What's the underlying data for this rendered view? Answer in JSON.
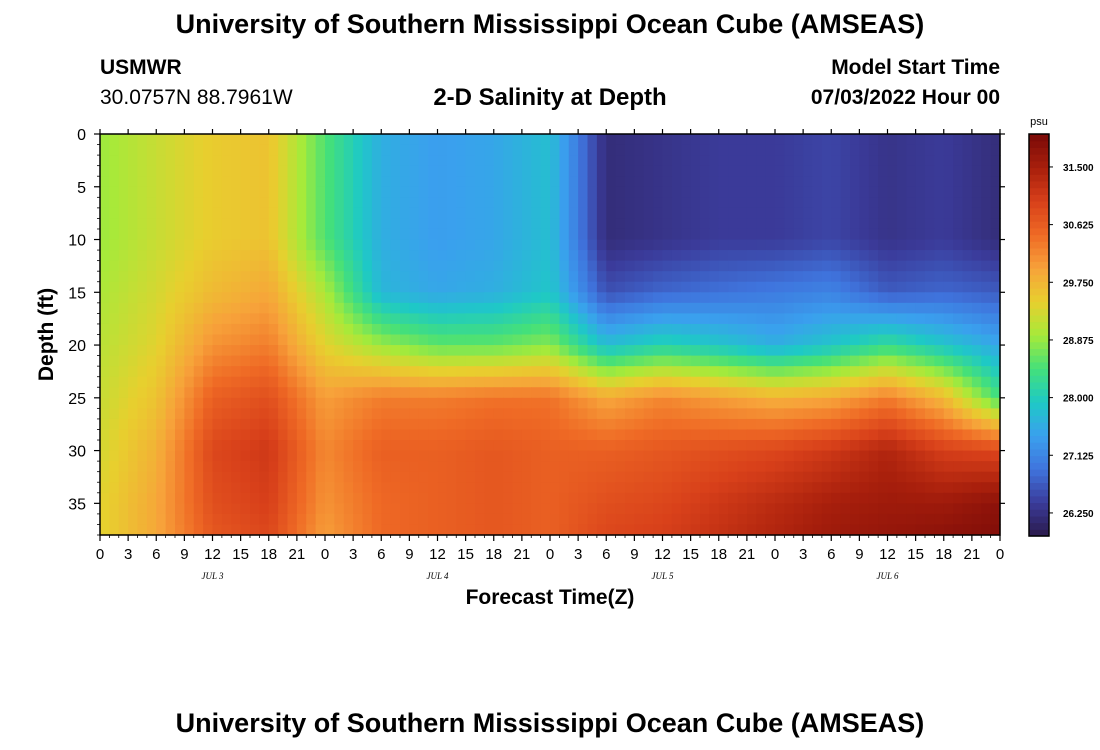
{
  "header": {
    "title": "University of Southern Mississippi Ocean Cube (AMSEAS)",
    "station": "USMWR",
    "coords": "30.0757N  88.7961W",
    "subtitle": "2-D Salinity at Depth",
    "start_label": "Model Start Time",
    "start_value": "07/03/2022 Hour 00",
    "footer_title": "University of Southern Mississippi Ocean Cube (AMSEAS)"
  },
  "chart_data": {
    "type": "heatmap",
    "xlabel": "Forecast Time(Z)",
    "ylabel": "Depth (ft)",
    "colorbar_unit": "psu",
    "xlim": [
      0,
      96
    ],
    "ylim": [
      0,
      38
    ],
    "y_inverted": true,
    "x_tick_labels": [
      "0",
      "3",
      "6",
      "9",
      "12",
      "15",
      "18",
      "21",
      "0",
      "3",
      "6",
      "9",
      "12",
      "15",
      "18",
      "21",
      "0",
      "3",
      "6",
      "9",
      "12",
      "15",
      "18",
      "21",
      "0",
      "3",
      "6",
      "9",
      "12",
      "15",
      "18",
      "21",
      "0"
    ],
    "x_tick_step_hours": 3,
    "date_labels": [
      {
        "hour": 12,
        "label": "JUL 3"
      },
      {
        "hour": 36,
        "label": "JUL 4"
      },
      {
        "hour": 60,
        "label": "JUL 5"
      },
      {
        "hour": 84,
        "label": "JUL 6"
      }
    ],
    "y_ticks": [
      0,
      5,
      10,
      15,
      20,
      25,
      30,
      35
    ],
    "colorbar": {
      "min": 25.9,
      "max": 32.0,
      "ticks": [
        26.25,
        27.125,
        28.0,
        28.875,
        29.75,
        30.625,
        31.5
      ],
      "tick_labels": [
        "26.250",
        "27.125",
        "28.000",
        "28.875",
        "29.750",
        "30.625",
        "31.500"
      ],
      "colormap": [
        "#2a1a4a",
        "#3b3b9a",
        "#3f74dd",
        "#3aa0ee",
        "#1ec9c6",
        "#44e07a",
        "#a6ea3a",
        "#e8cf2e",
        "#f7a23a",
        "#ef6a25",
        "#d8401a",
        "#a81f0c",
        "#7a0a08"
      ]
    },
    "depth_levels": [
      0,
      5,
      10,
      15,
      20,
      25,
      30,
      35,
      38
    ],
    "time_hours": [
      0,
      6,
      12,
      18,
      24,
      30,
      36,
      42,
      48,
      54,
      60,
      66,
      72,
      78,
      84,
      90,
      96
    ],
    "salinity": [
      [
        28.9,
        29.2,
        29.5,
        29.6,
        28.5,
        27.6,
        27.4,
        27.5,
        27.8,
        26.2,
        26.3,
        26.4,
        26.4,
        26.5,
        26.3,
        26.4,
        26.2
      ],
      [
        28.9,
        29.2,
        29.5,
        29.6,
        28.5,
        27.6,
        27.4,
        27.5,
        27.8,
        26.2,
        26.3,
        26.4,
        26.4,
        26.5,
        26.3,
        26.4,
        26.2
      ],
      [
        28.9,
        29.2,
        29.5,
        29.6,
        28.5,
        27.6,
        27.4,
        27.5,
        27.8,
        26.2,
        26.3,
        26.4,
        26.4,
        26.5,
        26.3,
        26.4,
        26.2
      ],
      [
        29.0,
        29.3,
        29.7,
        29.9,
        29.0,
        27.7,
        27.5,
        27.6,
        27.9,
        26.6,
        26.8,
        26.9,
        27.0,
        27.1,
        26.7,
        26.8,
        26.7
      ],
      [
        29.1,
        29.4,
        30.1,
        30.3,
        29.4,
        28.9,
        28.6,
        28.6,
        28.8,
        27.8,
        28.1,
        27.9,
        27.6,
        27.9,
        28.3,
        27.9,
        27.5
      ],
      [
        29.2,
        29.6,
        30.6,
        30.8,
        30.0,
        30.3,
        30.3,
        30.4,
        30.4,
        29.9,
        30.2,
        30.0,
        29.8,
        29.9,
        30.3,
        29.7,
        28.4
      ],
      [
        29.3,
        29.8,
        30.9,
        31.1,
        30.2,
        30.6,
        30.6,
        30.7,
        30.6,
        30.6,
        30.7,
        30.8,
        30.9,
        31.1,
        31.4,
        31.0,
        30.9
      ],
      [
        29.4,
        29.9,
        30.8,
        31.0,
        30.1,
        30.5,
        30.6,
        30.7,
        30.6,
        30.8,
        30.9,
        31.1,
        31.3,
        31.5,
        31.6,
        31.6,
        31.8
      ],
      [
        29.4,
        29.9,
        30.7,
        30.9,
        30.0,
        30.5,
        30.6,
        30.7,
        30.6,
        30.9,
        31.0,
        31.2,
        31.4,
        31.6,
        31.7,
        31.8,
        31.9
      ]
    ]
  }
}
